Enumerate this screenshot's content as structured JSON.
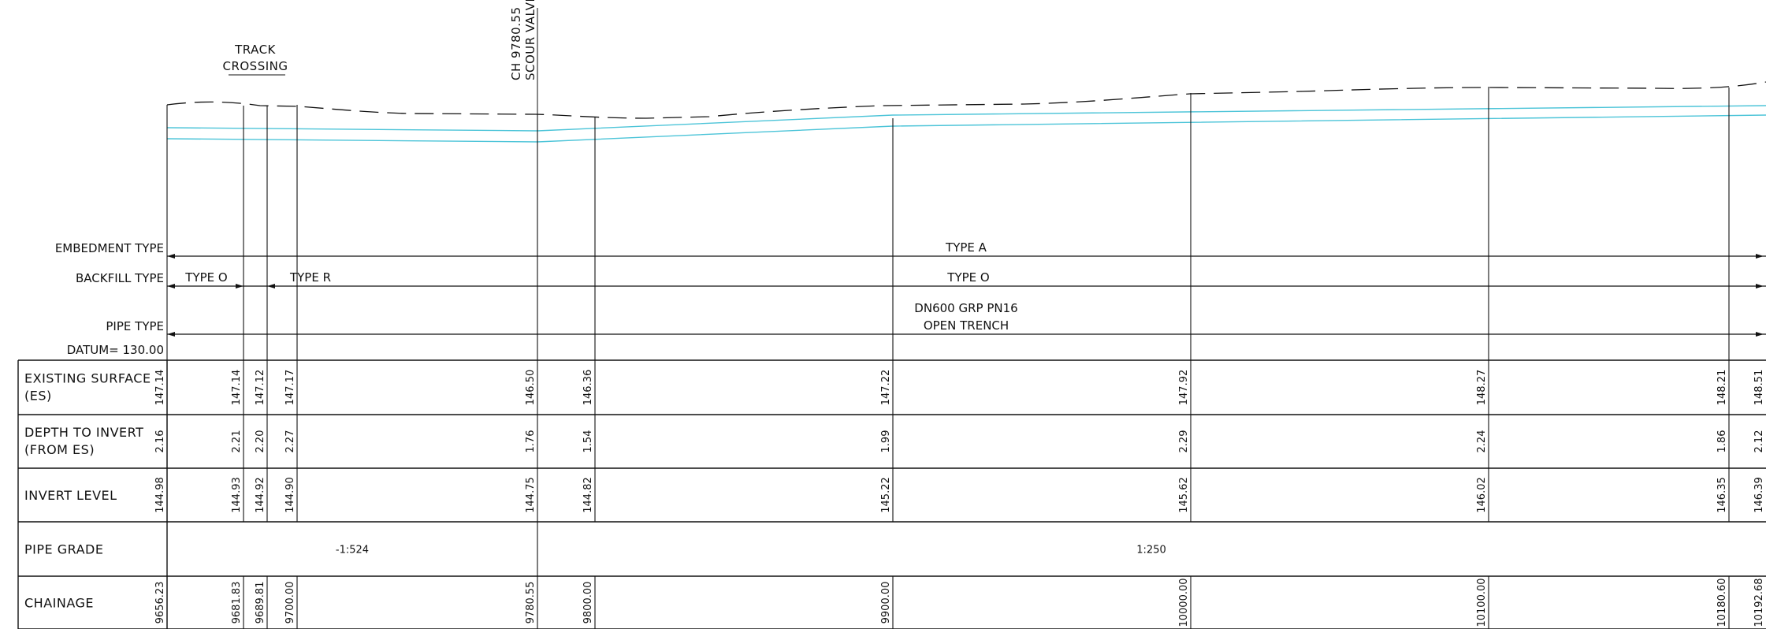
{
  "annotations": {
    "track_crossing_line1": "TRACK",
    "track_crossing_line2": "CROSSING",
    "scour_line1": "CH 9780.55",
    "scour_line2": "SCOUR VALVE"
  },
  "bands": {
    "embedment_label": "EMBEDMENT TYPE",
    "embedment_value": "TYPE A",
    "backfill_label": "BACKFILL TYPE",
    "backfill_values": [
      "TYPE O",
      "TYPE R",
      "TYPE O"
    ],
    "pipe_type_label": "PIPE TYPE",
    "pipe_type_line1": "DN600 GRP PN16",
    "pipe_type_line2": "OPEN TRENCH",
    "datum": "DATUM= 130.00"
  },
  "table": {
    "rows": [
      {
        "label1": "EXISTING SURFACE",
        "label2": "(ES)",
        "values": [
          "147.14",
          "147.14",
          "147.12",
          "147.17",
          "146.50",
          "146.36",
          "147.22",
          "147.92",
          "148.27",
          "148.21",
          "148.51"
        ]
      },
      {
        "label1": "DEPTH TO INVERT",
        "label2": "(FROM ES)",
        "values": [
          "2.16",
          "2.21",
          "2.20",
          "2.27",
          "1.76",
          "1.54",
          "1.99",
          "2.29",
          "2.24",
          "1.86",
          "2.12"
        ]
      },
      {
        "label1": "INVERT LEVEL",
        "label2": "",
        "values": [
          "144.98",
          "144.93",
          "144.92",
          "144.90",
          "144.75",
          "144.82",
          "145.22",
          "145.62",
          "146.02",
          "146.35",
          "146.39"
        ]
      },
      {
        "label1": "PIPE GRADE",
        "label2": "",
        "values": []
      },
      {
        "label1": "CHAINAGE",
        "label2": "",
        "values": [
          "9656.23",
          "9681.83",
          "9689.81",
          "9700.00",
          "9780.55",
          "9800.00",
          "9900.00",
          "10000.00",
          "10100.00",
          "10180.60",
          "10192.68"
        ]
      }
    ],
    "grades": [
      "-1:524",
      "1:250"
    ]
  },
  "colors": {
    "line": "#111111",
    "pipe": "#4cc4d8"
  }
}
